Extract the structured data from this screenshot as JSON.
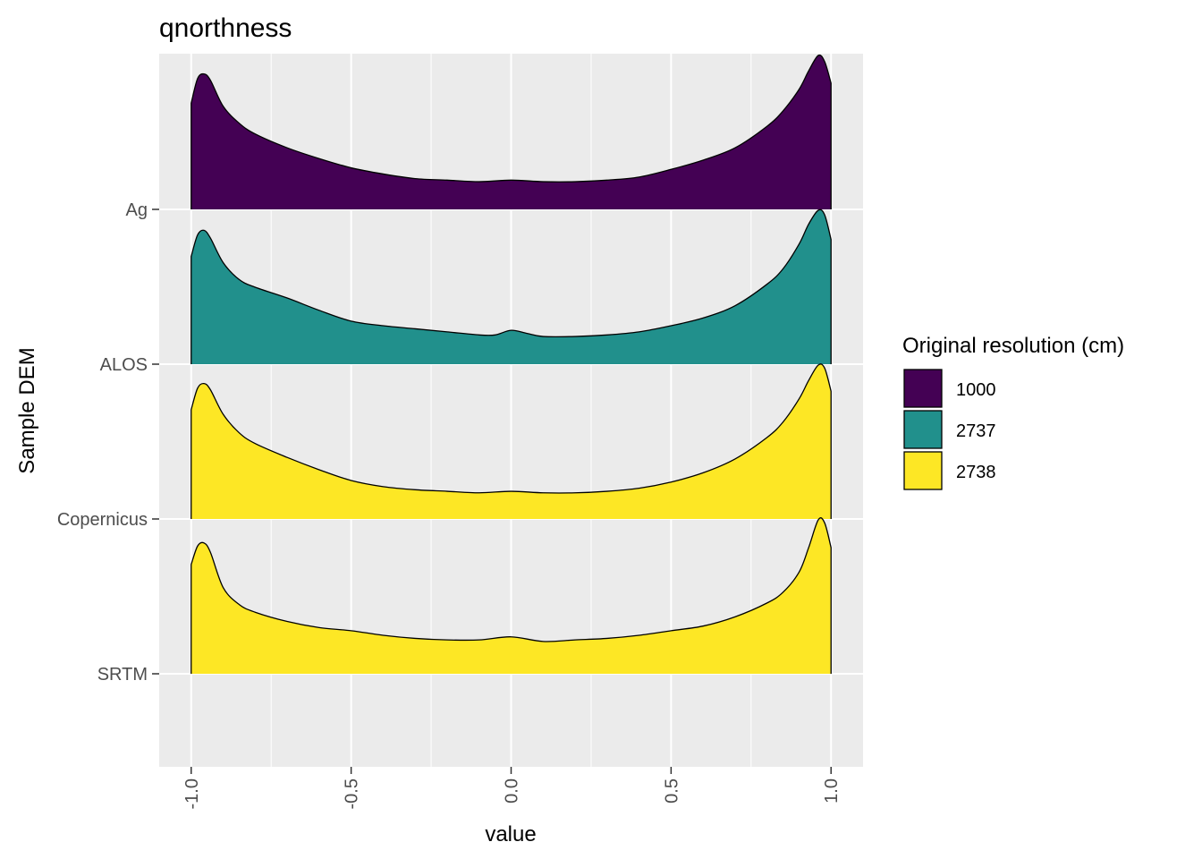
{
  "chart_data": {
    "type": "ridgeline",
    "title": "qnorthness",
    "xlabel": "value",
    "ylabel": "Sample DEM",
    "xlim": [
      -1.1,
      1.1
    ],
    "x_ticks": [
      -1.0,
      -0.5,
      0.0,
      0.5,
      1.0
    ],
    "x_tick_labels": [
      "-1.0",
      "-0.5",
      "0.0",
      "0.5",
      "1.0"
    ],
    "categories": [
      "Ag",
      "ALOS",
      "Copernicus",
      "SRTM"
    ],
    "grid": true,
    "legend": {
      "title": "Original resolution (cm)",
      "position": "right",
      "entries": [
        {
          "label": "1000",
          "color": "#440154"
        },
        {
          "label": "2737",
          "color": "#21908C"
        },
        {
          "label": "2738",
          "color": "#FDE725"
        }
      ]
    },
    "series": [
      {
        "category": "Ag",
        "resolution": "1000",
        "color": "#440154",
        "x": [
          -1.0,
          -0.98,
          -0.96,
          -0.94,
          -0.9,
          -0.85,
          -0.8,
          -0.7,
          -0.6,
          -0.5,
          -0.4,
          -0.3,
          -0.2,
          -0.1,
          0.0,
          0.1,
          0.2,
          0.3,
          0.4,
          0.5,
          0.6,
          0.7,
          0.8,
          0.85,
          0.9,
          0.93,
          0.96,
          0.98,
          1.0
        ],
        "y": [
          0.69,
          0.85,
          0.88,
          0.84,
          0.67,
          0.56,
          0.49,
          0.4,
          0.33,
          0.27,
          0.23,
          0.2,
          0.19,
          0.18,
          0.19,
          0.18,
          0.18,
          0.19,
          0.21,
          0.26,
          0.32,
          0.4,
          0.54,
          0.64,
          0.78,
          0.9,
          1.0,
          0.96,
          0.82
        ]
      },
      {
        "category": "ALOS",
        "resolution": "2737",
        "color": "#21908C",
        "x": [
          -1.0,
          -0.98,
          -0.96,
          -0.94,
          -0.9,
          -0.85,
          -0.8,
          -0.7,
          -0.6,
          -0.5,
          -0.4,
          -0.3,
          -0.2,
          -0.1,
          -0.05,
          0.0,
          0.05,
          0.1,
          0.2,
          0.3,
          0.4,
          0.5,
          0.6,
          0.7,
          0.8,
          0.85,
          0.9,
          0.93,
          0.96,
          0.98,
          1.0
        ],
        "y": [
          0.7,
          0.84,
          0.87,
          0.82,
          0.66,
          0.55,
          0.5,
          0.43,
          0.35,
          0.28,
          0.25,
          0.23,
          0.21,
          0.19,
          0.19,
          0.22,
          0.2,
          0.18,
          0.18,
          0.19,
          0.21,
          0.25,
          0.3,
          0.38,
          0.52,
          0.62,
          0.78,
          0.91,
          1.0,
          0.97,
          0.81
        ]
      },
      {
        "category": "Copernicus",
        "resolution": "2738",
        "color": "#FDE725",
        "x": [
          -1.0,
          -0.98,
          -0.96,
          -0.94,
          -0.9,
          -0.85,
          -0.8,
          -0.7,
          -0.6,
          -0.5,
          -0.4,
          -0.3,
          -0.2,
          -0.1,
          0.0,
          0.1,
          0.2,
          0.3,
          0.4,
          0.5,
          0.6,
          0.7,
          0.8,
          0.85,
          0.9,
          0.93,
          0.96,
          0.98,
          1.0
        ],
        "y": [
          0.71,
          0.85,
          0.88,
          0.84,
          0.68,
          0.56,
          0.49,
          0.4,
          0.32,
          0.25,
          0.21,
          0.19,
          0.18,
          0.17,
          0.18,
          0.17,
          0.17,
          0.18,
          0.2,
          0.24,
          0.3,
          0.39,
          0.53,
          0.63,
          0.78,
          0.9,
          1.0,
          0.98,
          0.83
        ]
      },
      {
        "category": "SRTM",
        "resolution": "2738",
        "color": "#FDE725",
        "x": [
          -1.0,
          -0.98,
          -0.96,
          -0.94,
          -0.9,
          -0.85,
          -0.8,
          -0.7,
          -0.6,
          -0.5,
          -0.4,
          -0.3,
          -0.2,
          -0.1,
          0.0,
          0.1,
          0.2,
          0.3,
          0.4,
          0.5,
          0.6,
          0.7,
          0.8,
          0.85,
          0.9,
          0.93,
          0.96,
          0.98,
          1.0
        ],
        "y": [
          0.71,
          0.83,
          0.85,
          0.79,
          0.56,
          0.45,
          0.4,
          0.34,
          0.3,
          0.28,
          0.25,
          0.23,
          0.22,
          0.22,
          0.24,
          0.21,
          0.22,
          0.23,
          0.25,
          0.28,
          0.31,
          0.37,
          0.46,
          0.53,
          0.66,
          0.82,
          1.0,
          0.98,
          0.82
        ]
      }
    ]
  }
}
